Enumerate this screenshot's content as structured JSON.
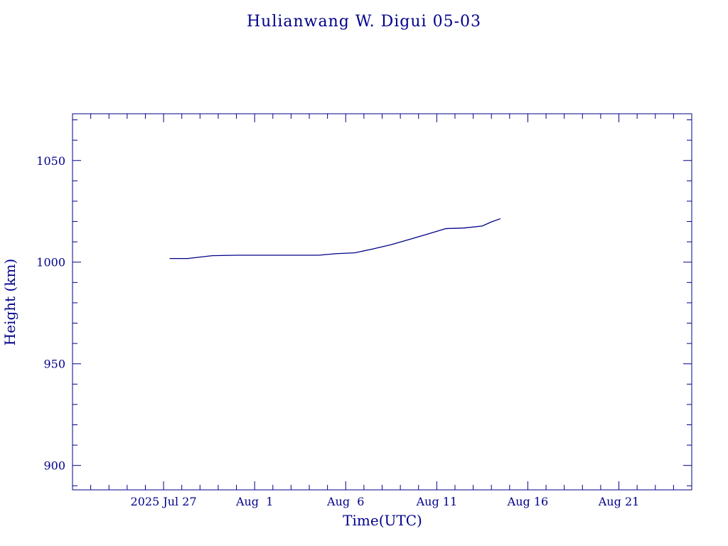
{
  "chart_data": {
    "type": "line",
    "title": "Hulianwang W. Digui 05-03",
    "xlabel": "Time(UTC)",
    "ylabel": "Height (km)",
    "x_unit": "date (UTC, 2025)",
    "xlim": [
      "2025-07-22",
      "2025-08-25"
    ],
    "ylim": [
      888,
      1073
    ],
    "x_ticks": [
      {
        "date": "2025-07-27",
        "label": "2025 Jul 27"
      },
      {
        "date": "2025-08-01",
        "label": "Aug  1"
      },
      {
        "date": "2025-08-06",
        "label": "Aug  6"
      },
      {
        "date": "2025-08-11",
        "label": "Aug 11"
      },
      {
        "date": "2025-08-16",
        "label": "Aug 16"
      },
      {
        "date": "2025-08-21",
        "label": "Aug 21"
      }
    ],
    "y_ticks": [
      900,
      950,
      1000,
      1050
    ],
    "grid": false,
    "series": [
      {
        "color": "#00008b",
        "x": [
          "2025-07-27 08:00",
          "2025-07-28 08:00",
          "2025-07-29 16:00",
          "2025-07-31 00:00",
          "2025-08-02 00:00",
          "2025-08-03 12:00",
          "2025-08-04 12:00",
          "2025-08-05 12:00",
          "2025-08-06 12:00",
          "2025-08-07 12:00",
          "2025-08-08 12:00",
          "2025-08-09 12:00",
          "2025-08-10 12:00",
          "2025-08-11 12:00",
          "2025-08-12 12:00",
          "2025-08-13 12:00",
          "2025-08-14 00:00",
          "2025-08-14 12:00"
        ],
        "y": [
          1001.8,
          1001.8,
          1003.2,
          1003.4,
          1003.4,
          1003.4,
          1003.4,
          1004.2,
          1004.6,
          1006.5,
          1008.6,
          1011.2,
          1013.8,
          1016.5,
          1016.8,
          1017.8,
          1019.8,
          1021.4
        ]
      }
    ]
  }
}
